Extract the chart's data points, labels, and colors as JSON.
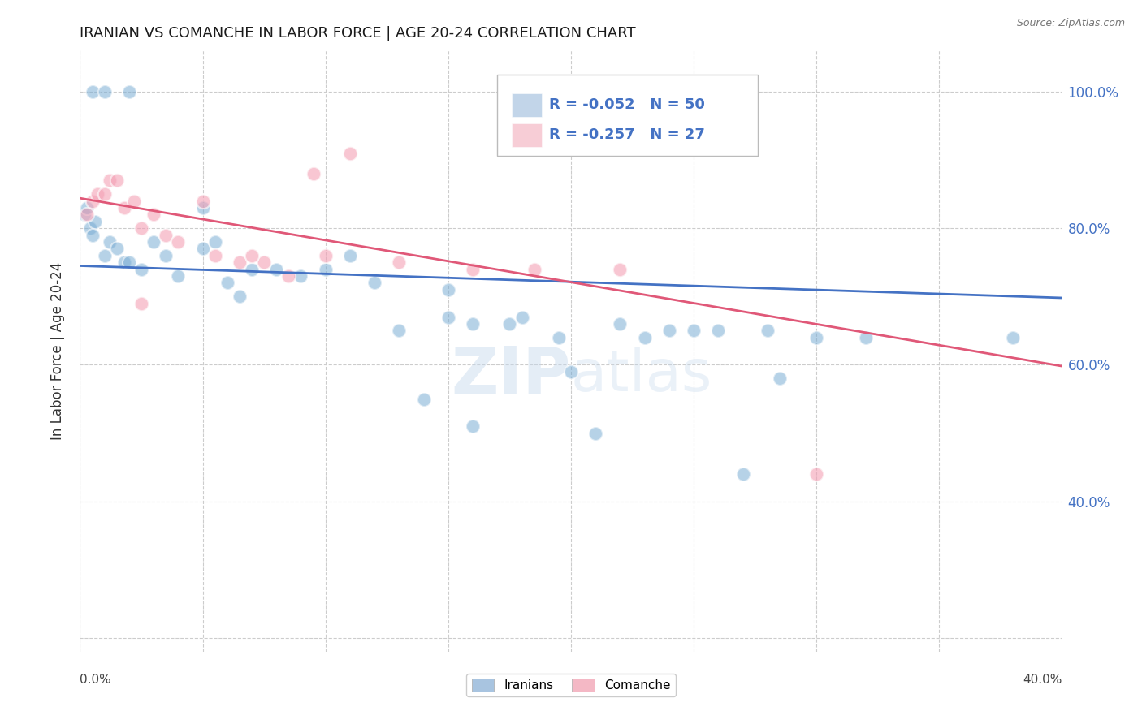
{
  "title": "IRANIAN VS COMANCHE IN LABOR FORCE | AGE 20-24 CORRELATION CHART",
  "source": "Source: ZipAtlas.com",
  "ylabel": "In Labor Force | Age 20-24",
  "watermark": "ZIPatlas",
  "legend_iranian_R": -0.052,
  "legend_iranian_N": 50,
  "legend_comanche_R": -0.257,
  "legend_comanche_N": 27,
  "xrange": [
    0.0,
    0.4
  ],
  "yrange": [
    0.18,
    1.06
  ],
  "yticks": [
    0.2,
    0.4,
    0.6,
    0.8,
    1.0
  ],
  "ytick_labels_right": [
    "",
    "40.0%",
    "60.0%",
    "80.0%",
    "100.0%"
  ],
  "xtick_labels_bottom": [
    "0.0%",
    "",
    "",
    "",
    "",
    "",
    "",
    "",
    "40.0%"
  ],
  "iranian_scatter_x": [
    0.004,
    0.006,
    0.002,
    0.003,
    0.005,
    0.01,
    0.012,
    0.015,
    0.018,
    0.02,
    0.025,
    0.03,
    0.035,
    0.04,
    0.05,
    0.055,
    0.06,
    0.065,
    0.07,
    0.08,
    0.09,
    0.1,
    0.11,
    0.12,
    0.13,
    0.15,
    0.16,
    0.18,
    0.2,
    0.22,
    0.24,
    0.25,
    0.27,
    0.28,
    0.3,
    0.32,
    0.005,
    0.01,
    0.02,
    0.05,
    0.15,
    0.175,
    0.195,
    0.23,
    0.26,
    0.14,
    0.16,
    0.21,
    0.38,
    0.285
  ],
  "iranian_scatter_y": [
    0.8,
    0.81,
    0.82,
    0.83,
    0.79,
    0.76,
    0.78,
    0.77,
    0.75,
    0.75,
    0.74,
    0.78,
    0.76,
    0.73,
    0.77,
    0.78,
    0.72,
    0.7,
    0.74,
    0.74,
    0.73,
    0.74,
    0.76,
    0.72,
    0.65,
    0.71,
    0.66,
    0.67,
    0.59,
    0.66,
    0.65,
    0.65,
    0.44,
    0.65,
    0.64,
    0.64,
    1.0,
    1.0,
    1.0,
    0.83,
    0.67,
    0.66,
    0.64,
    0.64,
    0.65,
    0.55,
    0.51,
    0.5,
    0.64,
    0.58
  ],
  "comanche_scatter_x": [
    0.003,
    0.005,
    0.007,
    0.01,
    0.012,
    0.015,
    0.018,
    0.022,
    0.025,
    0.03,
    0.035,
    0.04,
    0.05,
    0.055,
    0.065,
    0.075,
    0.085,
    0.095,
    0.11,
    0.13,
    0.16,
    0.185,
    0.22,
    0.025,
    0.07,
    0.1,
    0.3
  ],
  "comanche_scatter_y": [
    0.82,
    0.84,
    0.85,
    0.85,
    0.87,
    0.87,
    0.83,
    0.84,
    0.8,
    0.82,
    0.79,
    0.78,
    0.84,
    0.76,
    0.75,
    0.75,
    0.73,
    0.88,
    0.91,
    0.75,
    0.74,
    0.74,
    0.74,
    0.69,
    0.76,
    0.76,
    0.44
  ],
  "iranian_line_x": [
    0.0,
    0.4
  ],
  "iranian_line_y": [
    0.745,
    0.698
  ],
  "comanche_line_x": [
    0.0,
    0.4
  ],
  "comanche_line_y": [
    0.844,
    0.598
  ],
  "iranian_dot_color": "#7aadd4",
  "comanche_dot_color": "#f4a0b5",
  "iranian_line_color": "#4472c4",
  "comanche_line_color": "#e05878",
  "legend_box_iranian_color": "#a8c4e0",
  "legend_box_comanche_color": "#f4b8c5",
  "legend_text_color": "#4472c4",
  "background_color": "#ffffff",
  "grid_color": "#cccccc",
  "right_axis_color": "#4472c4"
}
